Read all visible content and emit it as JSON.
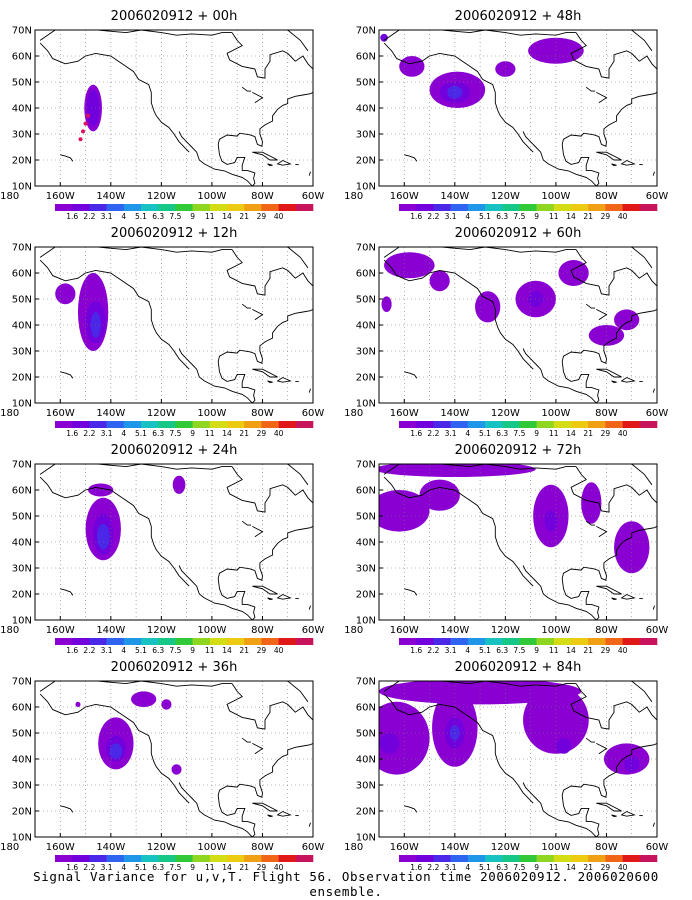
{
  "caption": "Signal Variance for u,v,T. Flight 56. Observation time 2006020912. 2006020600 ensemble.",
  "colors": [
    "#8a00d2",
    "#7100dc",
    "#4b28e8",
    "#2e64f0",
    "#1f96e8",
    "#17c2c2",
    "#16c788",
    "#31c93a",
    "#8ed620",
    "#d4dc16",
    "#eccb12",
    "#f0a014",
    "#f06616",
    "#e01818",
    "#c8145c"
  ],
  "colorbar_labels": [
    "1.6",
    "2.2",
    "3.1",
    "4",
    "5.1",
    "6.3",
    "7.5",
    "9",
    "11",
    "14",
    "21",
    "29",
    "40"
  ],
  "chart_data": [
    {
      "type": "heatmap",
      "title": "2006020912 + 00h",
      "panel": "left-1",
      "x_ticks": [
        "180",
        "160W",
        "140W",
        "120W",
        "100W",
        "80W",
        "60W"
      ],
      "y_ticks": [
        "10N",
        "20N",
        "30N",
        "40N",
        "50N",
        "60N",
        "70N"
      ],
      "xlim": [
        -170,
        -60
      ],
      "ylim": [
        10,
        70
      ],
      "blobs": [
        {
          "lon": -147,
          "lat": 40,
          "rx": 3.5,
          "ry": 9,
          "level": 1
        },
        {
          "lon": -147,
          "lat": 40,
          "rx": 2.5,
          "ry": 7,
          "level": 2
        }
      ],
      "dots": [
        {
          "lon": -152,
          "lat": 28
        },
        {
          "lon": -151,
          "lat": 31
        },
        {
          "lon": -150,
          "lat": 34
        },
        {
          "lon": -149,
          "lat": 37
        }
      ]
    },
    {
      "type": "heatmap",
      "title": "2006020912 + 48h",
      "panel": "right-1",
      "x_ticks": [
        "180",
        "160W",
        "140W",
        "120W",
        "100W",
        "80W",
        "60W"
      ],
      "y_ticks": [
        "10N",
        "20N",
        "30N",
        "40N",
        "50N",
        "60N",
        "70N"
      ],
      "xlim": [
        -170,
        -60
      ],
      "ylim": [
        10,
        70
      ],
      "blobs": [
        {
          "lon": -157,
          "lat": 56,
          "rx": 5,
          "ry": 4,
          "level": 1
        },
        {
          "lon": -139,
          "lat": 47,
          "rx": 11,
          "ry": 7,
          "level": 1
        },
        {
          "lon": -140,
          "lat": 46,
          "rx": 6,
          "ry": 4,
          "level": 2
        },
        {
          "lon": -140,
          "lat": 46,
          "rx": 3,
          "ry": 2.5,
          "level": 3
        },
        {
          "lon": -100,
          "lat": 62,
          "rx": 11,
          "ry": 5,
          "level": 1
        },
        {
          "lon": -120,
          "lat": 55,
          "rx": 4,
          "ry": 3,
          "level": 1
        },
        {
          "lon": -168,
          "lat": 67,
          "rx": 1.5,
          "ry": 1.5,
          "level": 2
        }
      ],
      "dots": []
    },
    {
      "type": "heatmap",
      "title": "2006020912 + 12h",
      "panel": "left-2",
      "x_ticks": [
        "180",
        "160W",
        "140W",
        "120W",
        "100W",
        "80W",
        "60W"
      ],
      "y_ticks": [
        "10N",
        "20N",
        "30N",
        "40N",
        "50N",
        "60N",
        "70N"
      ],
      "xlim": [
        -170,
        -60
      ],
      "ylim": [
        10,
        70
      ],
      "blobs": [
        {
          "lon": -158,
          "lat": 52,
          "rx": 4,
          "ry": 4,
          "level": 1
        },
        {
          "lon": -147,
          "lat": 45,
          "rx": 6,
          "ry": 15,
          "level": 1
        },
        {
          "lon": -146,
          "lat": 41,
          "rx": 4,
          "ry": 8,
          "level": 2
        },
        {
          "lon": -146,
          "lat": 40,
          "rx": 2,
          "ry": 5,
          "level": 3
        }
      ],
      "dots": []
    },
    {
      "type": "heatmap",
      "title": "2006020912 + 60h",
      "panel": "right-2",
      "x_ticks": [
        "180",
        "160W",
        "140W",
        "120W",
        "100W",
        "80W",
        "60W"
      ],
      "y_ticks": [
        "10N",
        "20N",
        "30N",
        "40N",
        "50N",
        "60N",
        "70N"
      ],
      "xlim": [
        -170,
        -60
      ],
      "ylim": [
        10,
        70
      ],
      "blobs": [
        {
          "lon": -158,
          "lat": 63,
          "rx": 10,
          "ry": 5,
          "level": 1
        },
        {
          "lon": -146,
          "lat": 57,
          "rx": 4,
          "ry": 4,
          "level": 1
        },
        {
          "lon": -127,
          "lat": 47,
          "rx": 5,
          "ry": 6,
          "level": 1
        },
        {
          "lon": -108,
          "lat": 50,
          "rx": 8,
          "ry": 7,
          "level": 1
        },
        {
          "lon": -108,
          "lat": 50,
          "rx": 3,
          "ry": 3,
          "level": 2
        },
        {
          "lon": -93,
          "lat": 60,
          "rx": 6,
          "ry": 5,
          "level": 1
        },
        {
          "lon": -80,
          "lat": 36,
          "rx": 7,
          "ry": 4,
          "level": 1
        },
        {
          "lon": -72,
          "lat": 42,
          "rx": 5,
          "ry": 4,
          "level": 1
        },
        {
          "lon": -167,
          "lat": 48,
          "rx": 2,
          "ry": 3,
          "level": 1
        }
      ],
      "dots": []
    },
    {
      "type": "heatmap",
      "title": "2006020912 + 24h",
      "panel": "left-3",
      "x_ticks": [
        "180",
        "160W",
        "140W",
        "120W",
        "100W",
        "80W",
        "60W"
      ],
      "y_ticks": [
        "10N",
        "20N",
        "30N",
        "40N",
        "50N",
        "60N",
        "70N"
      ],
      "xlim": [
        -170,
        -60
      ],
      "ylim": [
        10,
        70
      ],
      "blobs": [
        {
          "lon": -143,
          "lat": 45,
          "rx": 7,
          "ry": 12,
          "level": 1
        },
        {
          "lon": -143,
          "lat": 43,
          "rx": 4,
          "ry": 8,
          "level": 2
        },
        {
          "lon": -143,
          "lat": 42,
          "rx": 2.5,
          "ry": 5,
          "level": 3
        },
        {
          "lon": -144,
          "lat": 60,
          "rx": 5,
          "ry": 2.5,
          "level": 1
        },
        {
          "lon": -113,
          "lat": 62,
          "rx": 2.5,
          "ry": 3.5,
          "level": 1
        }
      ],
      "dots": []
    },
    {
      "type": "heatmap",
      "title": "2006020912 + 72h",
      "panel": "right-3",
      "x_ticks": [
        "180",
        "160W",
        "140W",
        "120W",
        "100W",
        "80W",
        "60W"
      ],
      "y_ticks": [
        "10N",
        "20N",
        "30N",
        "40N",
        "50N",
        "60N",
        "70N"
      ],
      "xlim": [
        -170,
        -60
      ],
      "ylim": [
        10,
        70
      ],
      "blobs": [
        {
          "lon": -140,
          "lat": 68,
          "rx": 32,
          "ry": 3,
          "level": 1
        },
        {
          "lon": -162,
          "lat": 52,
          "rx": 12,
          "ry": 8,
          "level": 1
        },
        {
          "lon": -146,
          "lat": 58,
          "rx": 8,
          "ry": 6,
          "level": 1
        },
        {
          "lon": -102,
          "lat": 50,
          "rx": 7,
          "ry": 12,
          "level": 1
        },
        {
          "lon": -102,
          "lat": 48,
          "rx": 2.5,
          "ry": 4,
          "level": 2
        },
        {
          "lon": -86,
          "lat": 55,
          "rx": 4,
          "ry": 8,
          "level": 1
        },
        {
          "lon": -70,
          "lat": 38,
          "rx": 7,
          "ry": 10,
          "level": 1
        }
      ],
      "dots": []
    },
    {
      "type": "heatmap",
      "title": "2006020912 + 36h",
      "panel": "left-4",
      "x_ticks": [
        "180",
        "160W",
        "140W",
        "120W",
        "100W",
        "80W",
        "60W"
      ],
      "y_ticks": [
        "10N",
        "20N",
        "30N",
        "40N",
        "50N",
        "60N",
        "70N"
      ],
      "xlim": [
        -170,
        -60
      ],
      "ylim": [
        10,
        70
      ],
      "blobs": [
        {
          "lon": -138,
          "lat": 46,
          "rx": 7,
          "ry": 10,
          "level": 1
        },
        {
          "lon": -138,
          "lat": 44,
          "rx": 4,
          "ry": 5,
          "level": 2
        },
        {
          "lon": -138,
          "lat": 43,
          "rx": 2.5,
          "ry": 3,
          "level": 3
        },
        {
          "lon": -127,
          "lat": 63,
          "rx": 5,
          "ry": 3,
          "level": 1
        },
        {
          "lon": -118,
          "lat": 61,
          "rx": 2,
          "ry": 2,
          "level": 1
        },
        {
          "lon": -114,
          "lat": 36,
          "rx": 2,
          "ry": 2,
          "level": 1
        },
        {
          "lon": -153,
          "lat": 61,
          "rx": 1,
          "ry": 1,
          "level": 1
        }
      ],
      "dots": []
    },
    {
      "type": "heatmap",
      "title": "2006020912 + 84h",
      "panel": "right-4",
      "x_ticks": [
        "180",
        "160W",
        "140W",
        "120W",
        "100W",
        "80W",
        "60W"
      ],
      "y_ticks": [
        "10N",
        "20N",
        "30N",
        "40N",
        "50N",
        "60N",
        "70N"
      ],
      "xlim": [
        -170,
        -60
      ],
      "ylim": [
        10,
        70
      ],
      "blobs": [
        {
          "lon": -130,
          "lat": 66,
          "rx": 40,
          "ry": 5,
          "level": 1
        },
        {
          "lon": -163,
          "lat": 48,
          "rx": 13,
          "ry": 14,
          "level": 1
        },
        {
          "lon": -166,
          "lat": 46,
          "rx": 4,
          "ry": 4,
          "level": 2
        },
        {
          "lon": -140,
          "lat": 52,
          "rx": 9,
          "ry": 15,
          "level": 1
        },
        {
          "lon": -140,
          "lat": 50,
          "rx": 4,
          "ry": 6,
          "level": 2
        },
        {
          "lon": -140,
          "lat": 50,
          "rx": 2,
          "ry": 3,
          "level": 3
        },
        {
          "lon": -100,
          "lat": 55,
          "rx": 13,
          "ry": 13,
          "level": 1
        },
        {
          "lon": -97,
          "lat": 45,
          "rx": 3,
          "ry": 3,
          "level": 2
        },
        {
          "lon": -72,
          "lat": 40,
          "rx": 9,
          "ry": 6,
          "level": 1
        },
        {
          "lon": -70,
          "lat": 38,
          "rx": 3,
          "ry": 3,
          "level": 2
        }
      ],
      "dots": []
    }
  ]
}
